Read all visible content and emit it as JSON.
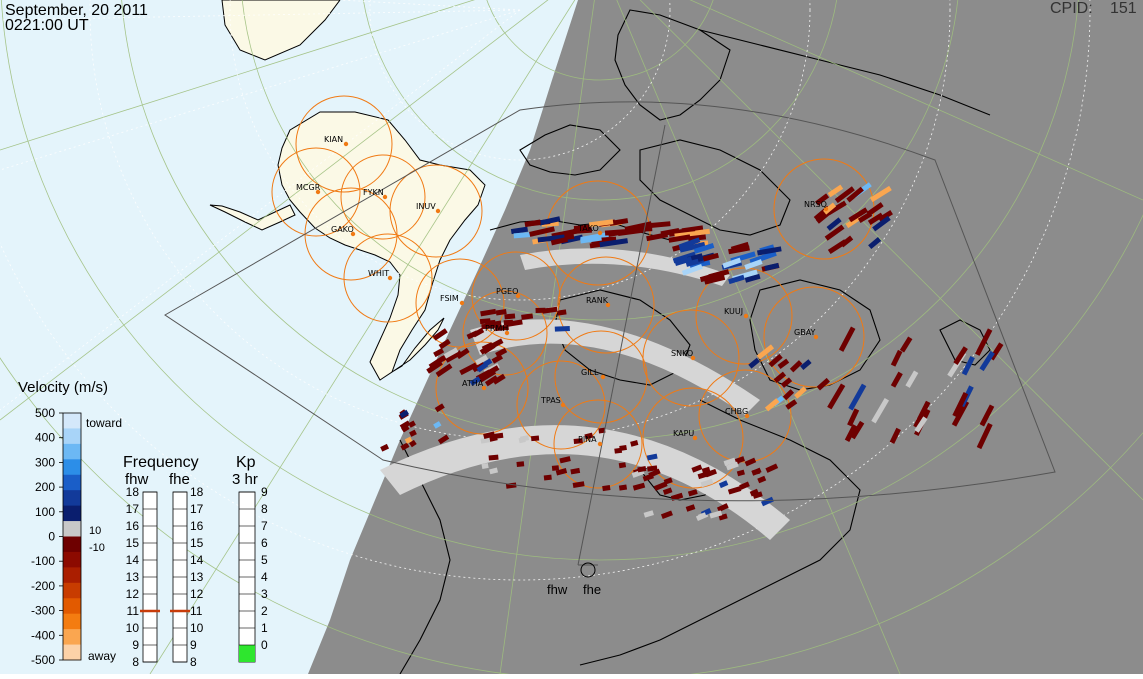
{
  "header": {
    "date": "September, 20 2011",
    "time": "0221:00 UT",
    "cpid_label": "CPID:",
    "cpid_value": "151"
  },
  "colors": {
    "sunlit_ocean": "#e4f4fb",
    "land": "#fbf9e6",
    "night": "#8c8c8c",
    "coast": "#000000",
    "fov_circle": "#f07a14",
    "grid_line": "#9fbf7e",
    "ground_scatter": "#d6d6d6",
    "kp_fill": "#2ee62e",
    "freq_marker": "#c83c0a"
  },
  "stations": [
    "KIAN",
    "MCGR",
    "FYKN",
    "INUV",
    "GAKO",
    "WHIT",
    "FSIM",
    "PGEO",
    "PRMH",
    "RANK",
    "TAKO",
    "NRSQ",
    "KUUJ",
    "GBAY",
    "SNKO",
    "GILL",
    "ATHA",
    "TPAS",
    "CHBG",
    "KAPU",
    "PINA"
  ],
  "velocity_scale": {
    "title": "Velocity (m/s)",
    "toward_label": "toward",
    "away_label": "away",
    "ticks": [
      "500",
      "400",
      "300",
      "200",
      "100",
      "0",
      "-100",
      "-200",
      "-300",
      "-400",
      "-500"
    ],
    "threshold_pos": "10",
    "threshold_neg": "-10",
    "colors": [
      "#d4e8fa",
      "#a8d4f8",
      "#6cb8f4",
      "#2c8ee8",
      "#1a5ec8",
      "#123a9a",
      "#0a1e6e",
      "#c8c8c8",
      "#6e0000",
      "#8c0a00",
      "#aa1e00",
      "#c83c00",
      "#e25a00",
      "#f47c10",
      "#faa650",
      "#fcd2a8"
    ]
  },
  "frequency_scale": {
    "title": "Frequency",
    "left_label": "fhw",
    "right_label": "fhe",
    "ticks": [
      "18",
      "17",
      "16",
      "15",
      "14",
      "13",
      "12",
      "11",
      "10",
      "9",
      "8"
    ],
    "fhw_value": 11,
    "fhe_value": 11,
    "min": 8,
    "max": 18
  },
  "kp_scale": {
    "title": "Kp",
    "subtitle": "3 hr",
    "ticks": [
      "9",
      "8",
      "7",
      "6",
      "5",
      "4",
      "3",
      "2",
      "1",
      "0"
    ],
    "value": 1,
    "min": 0,
    "max": 9
  },
  "radar_labels": {
    "fhw": "fhw",
    "fhe": "fhe"
  }
}
